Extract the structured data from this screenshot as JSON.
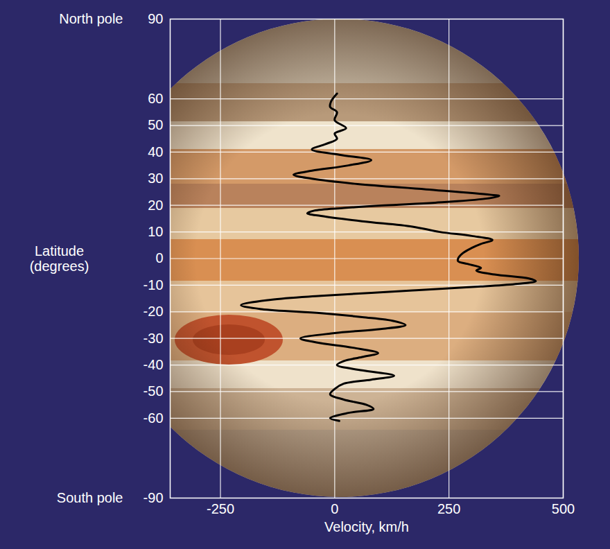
{
  "chart_data": {
    "type": "line",
    "x_label": "Velocity, km/h",
    "y_label": "Latitude (degrees)",
    "annotations": [
      {
        "text": "North pole",
        "y": 90
      },
      {
        "text": "South pole",
        "y": -90
      }
    ],
    "x": [
      5,
      -8,
      -10,
      5,
      0,
      25,
      0,
      5,
      -20,
      -50,
      10,
      80,
      30,
      -50,
      -90,
      -50,
      50,
      200,
      340,
      360,
      330,
      220,
      110,
      20,
      -45,
      -60,
      -30,
      60,
      170,
      230,
      300,
      345,
      320,
      300,
      280,
      270,
      270,
      290,
      320,
      310,
      350,
      425,
      440,
      400,
      320,
      170,
      -30,
      -140,
      -205,
      -160,
      -30,
      60,
      130,
      155,
      100,
      0,
      -75,
      -40,
      40,
      95,
      60,
      20,
      5,
      60,
      130,
      80,
      20,
      0,
      -10,
      20,
      70,
      85,
      30,
      -10,
      10
    ],
    "y": [
      62,
      59,
      57,
      55,
      52,
      49,
      47,
      45,
      43,
      41,
      39,
      37,
      35,
      33,
      31.5,
      30,
      28,
      26,
      24,
      23.5,
      22.5,
      21,
      20,
      19,
      18,
      17,
      16,
      14,
      12,
      10,
      8.5,
      7,
      5.5,
      4,
      2,
      0,
      -1,
      -2,
      -3.5,
      -4.5,
      -6,
      -7.5,
      -8.5,
      -9.5,
      -10.5,
      -12,
      -14,
      -15.5,
      -17.5,
      -19,
      -20.5,
      -22,
      -23.5,
      -25,
      -26.5,
      -28,
      -30,
      -31.5,
      -33.5,
      -35.5,
      -37,
      -38.5,
      -40,
      -42,
      -44,
      -45.5,
      -47,
      -49,
      -51,
      -53,
      -55,
      -56.5,
      -58,
      -60,
      -61
    ],
    "xlim": [
      -360,
      500
    ],
    "xticks": [
      -250,
      0,
      250,
      500
    ],
    "ylim": [
      -90,
      90
    ],
    "yticks": [
      90,
      60,
      50,
      40,
      30,
      20,
      10,
      0,
      -10,
      -20,
      -30,
      -40,
      -50,
      -60,
      -90
    ],
    "grid": true,
    "color": "#000000"
  }
}
